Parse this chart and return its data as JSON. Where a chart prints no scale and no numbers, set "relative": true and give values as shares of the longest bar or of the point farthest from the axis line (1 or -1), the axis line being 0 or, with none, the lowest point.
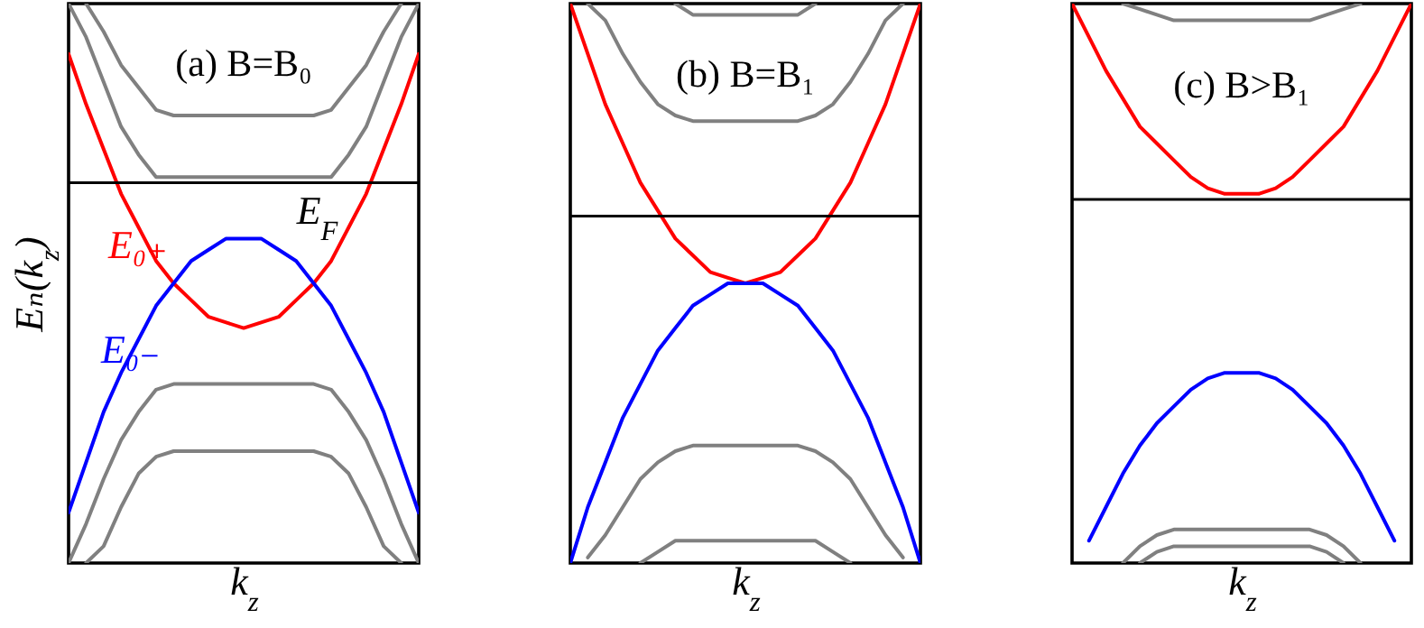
{
  "chart_data": [
    {
      "type": "line",
      "relative": true,
      "xlabel": "k$_{z}$",
      "ylabel": "Eₙ(k$_{z}$)",
      "annotations": [
        "(a) B=B₀"
      ],
      "categories": [
        null,
        null,
        null,
        null,
        null,
        null,
        null,
        null,
        null,
        null,
        null,
        null,
        null,
        null,
        null,
        null,
        null,
        null,
        null,
        null,
        null
      ],
      "ref_lines": [
        {
          "axis": "y",
          "value": 0.68,
          "label": "E$_{F}$"
        }
      ],
      "series": [
        {
          "color": "#808080",
          "values": [
            null,
            1.0,
            0.95,
            0.89,
            0.85,
            0.81,
            0.8,
            0.8,
            0.8,
            0.8,
            0.8,
            0.8,
            0.8,
            0.8,
            0.8,
            0.81,
            0.85,
            0.89,
            0.95,
            1.0,
            null
          ]
        },
        {
          "color": "#808080",
          "values": [
            1.0,
            0.94,
            0.86,
            0.78,
            0.73,
            0.69,
            0.69,
            0.69,
            0.69,
            0.69,
            0.69,
            0.69,
            0.69,
            0.69,
            0.69,
            0.69,
            0.73,
            0.78,
            0.86,
            0.94,
            1.0
          ]
        },
        {
          "color": "#808080",
          "values": [
            0.0,
            0.07,
            0.15,
            0.22,
            0.27,
            0.31,
            0.32,
            0.32,
            0.32,
            0.32,
            0.32,
            0.32,
            0.32,
            0.32,
            0.32,
            0.31,
            0.27,
            0.22,
            0.15,
            0.07,
            0.0
          ]
        },
        {
          "color": "#808080",
          "values": [
            null,
            0.0,
            0.03,
            0.1,
            0.16,
            0.19,
            0.2,
            0.2,
            0.2,
            0.2,
            0.2,
            0.2,
            0.2,
            0.2,
            0.2,
            0.19,
            0.16,
            0.1,
            0.03,
            0.0,
            null
          ]
        },
        {
          "name": "E₀₊",
          "color": "#ff0000",
          "values": [
            0.91,
            0.82,
            0.74,
            0.66,
            0.6,
            0.54,
            0.5,
            0.47,
            0.44,
            0.43,
            0.42,
            0.43,
            0.44,
            0.47,
            0.5,
            0.54,
            0.6,
            0.66,
            0.74,
            0.82,
            0.91
          ]
        },
        {
          "name": "E₀₋",
          "color": "#0000ff",
          "values": [
            0.09,
            0.18,
            0.27,
            0.34,
            0.4,
            0.46,
            0.5,
            0.54,
            0.56,
            0.58,
            0.58,
            0.58,
            0.56,
            0.54,
            0.5,
            0.46,
            0.4,
            0.34,
            0.27,
            0.18,
            0.09
          ]
        }
      ]
    },
    {
      "type": "line",
      "relative": true,
      "xlabel": "k$_{z}$",
      "annotations": [
        "(b) B=B₁"
      ],
      "categories": [
        null,
        null,
        null,
        null,
        null,
        null,
        null,
        null,
        null,
        null,
        null,
        null,
        null,
        null,
        null,
        null,
        null,
        null,
        null,
        null,
        null
      ],
      "ref_lines": [
        {
          "axis": "y",
          "value": 0.62
        }
      ],
      "series": [
        {
          "color": "#808080",
          "values": [
            null,
            null,
            null,
            null,
            null,
            null,
            1.0,
            0.98,
            0.98,
            0.98,
            0.98,
            0.98,
            0.98,
            0.98,
            1.0,
            null,
            null,
            null,
            null,
            null,
            null
          ]
        },
        {
          "color": "#808080",
          "values": [
            null,
            1.0,
            0.97,
            0.91,
            0.86,
            0.82,
            0.8,
            0.79,
            0.79,
            0.79,
            0.79,
            0.79,
            0.79,
            0.79,
            0.8,
            0.82,
            0.86,
            0.91,
            0.97,
            1.0,
            null
          ]
        },
        {
          "color": "#808080",
          "values": [
            null,
            0.01,
            0.05,
            0.1,
            0.15,
            0.18,
            0.2,
            0.21,
            0.21,
            0.21,
            0.21,
            0.21,
            0.21,
            0.21,
            0.2,
            0.18,
            0.15,
            0.1,
            0.05,
            0.01,
            null
          ]
        },
        {
          "color": "#808080",
          "values": [
            null,
            null,
            null,
            null,
            0.0,
            0.02,
            0.04,
            0.04,
            0.04,
            0.04,
            0.04,
            0.04,
            0.04,
            0.04,
            0.04,
            0.02,
            0.0,
            null,
            null,
            null,
            null
          ]
        },
        {
          "color": "#ff0000",
          "values": [
            1.0,
            0.91,
            0.82,
            0.75,
            0.68,
            0.63,
            0.58,
            0.55,
            0.52,
            0.51,
            0.5,
            0.51,
            0.52,
            0.55,
            0.58,
            0.63,
            0.68,
            0.75,
            0.82,
            0.91,
            1.0
          ]
        },
        {
          "color": "#0000ff",
          "values": [
            0.0,
            0.1,
            0.18,
            0.26,
            0.32,
            0.38,
            0.42,
            0.46,
            0.48,
            0.5,
            0.5,
            0.5,
            0.48,
            0.46,
            0.42,
            0.38,
            0.32,
            0.26,
            0.18,
            0.1,
            0.0
          ]
        }
      ]
    },
    {
      "type": "line",
      "relative": true,
      "xlabel": "k$_{z}$",
      "annotations": [
        "(c) B>B₁"
      ],
      "categories": [
        null,
        null,
        null,
        null,
        null,
        null,
        null,
        null,
        null,
        null,
        null,
        null,
        null,
        null,
        null,
        null,
        null,
        null,
        null,
        null,
        null
      ],
      "ref_lines": [
        {
          "axis": "y",
          "value": 0.65
        }
      ],
      "series": [
        {
          "color": "#808080",
          "values": [
            null,
            null,
            null,
            1.0,
            0.99,
            0.98,
            0.97,
            0.97,
            0.97,
            0.97,
            0.97,
            0.97,
            0.97,
            0.97,
            0.97,
            0.98,
            0.99,
            1.0,
            null,
            null,
            null
          ]
        },
        {
          "color": "#808080",
          "values": [
            null,
            null,
            null,
            0.0,
            0.03,
            0.05,
            0.06,
            0.06,
            0.06,
            0.06,
            0.06,
            0.06,
            0.06,
            0.06,
            0.06,
            0.05,
            0.03,
            0.0,
            null,
            null,
            null
          ]
        },
        {
          "color": "#808080",
          "values": [
            null,
            null,
            null,
            null,
            0.0,
            0.02,
            0.03,
            0.03,
            0.03,
            0.03,
            0.03,
            0.03,
            0.03,
            0.03,
            0.03,
            0.02,
            0.0,
            null,
            null,
            null,
            null
          ]
        },
        {
          "color": "#ff0000",
          "values": [
            1.0,
            0.94,
            0.88,
            0.83,
            0.78,
            0.75,
            0.72,
            0.69,
            0.67,
            0.66,
            0.66,
            0.66,
            0.67,
            0.69,
            0.72,
            0.75,
            0.78,
            0.83,
            0.88,
            0.94,
            1.0
          ]
        },
        {
          "color": "#0000ff",
          "values": [
            null,
            0.04,
            0.1,
            0.16,
            0.21,
            0.25,
            0.28,
            0.31,
            0.33,
            0.34,
            0.34,
            0.34,
            0.33,
            0.31,
            0.28,
            0.25,
            0.21,
            0.16,
            0.1,
            0.04,
            null
          ]
        }
      ]
    }
  ]
}
